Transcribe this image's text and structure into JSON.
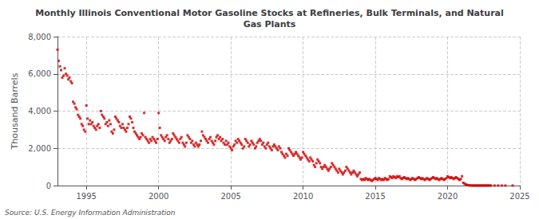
{
  "chart_data": {
    "type": "scatter",
    "title": "Monthly Illinois Conventional Motor Gasoline Stocks at Refineries, Bulk Terminals, and Natural\nGas Plants",
    "ylabel": "Thousand Barrels",
    "annotations": [
      "Source: U.S. Energy Information Administration"
    ],
    "color": "#cc0000",
    "marker": "square",
    "grid": true,
    "xlim": [
      1993.0,
      2025
    ],
    "xticks": [
      1995,
      2000,
      2005,
      2010,
      2015,
      2020,
      2025
    ],
    "ylim": [
      0,
      8000
    ],
    "yticks": [
      0,
      {
        "value": 2000,
        "label": "2,000"
      },
      {
        "value": 4000,
        "label": "4,000"
      },
      {
        "value": 6000,
        "label": "6,000"
      },
      {
        "value": 8000,
        "label": "8,000"
      }
    ],
    "x": [
      1993.0,
      1993.08,
      1993.17,
      1993.25,
      1993.33,
      1993.42,
      1993.5,
      1993.58,
      1993.67,
      1993.75,
      1993.83,
      1993.92,
      1994.0,
      1994.08,
      1994.17,
      1994.25,
      1994.33,
      1994.42,
      1994.5,
      1994.58,
      1994.67,
      1994.75,
      1994.83,
      1994.92,
      1995.0,
      1995.08,
      1995.17,
      1995.25,
      1995.33,
      1995.42,
      1995.5,
      1995.58,
      1995.67,
      1995.75,
      1995.83,
      1995.92,
      1996.0,
      1996.08,
      1996.17,
      1996.25,
      1996.33,
      1996.42,
      1996.5,
      1996.58,
      1996.67,
      1996.75,
      1996.83,
      1996.92,
      1997.0,
      1997.08,
      1997.17,
      1997.25,
      1997.33,
      1997.42,
      1997.5,
      1997.58,
      1997.67,
      1997.75,
      1997.83,
      1997.92,
      1998.0,
      1998.08,
      1998.17,
      1998.25,
      1998.33,
      1998.42,
      1998.5,
      1998.58,
      1998.67,
      1998.75,
      1998.83,
      1998.92,
      1999.0,
      1999.08,
      1999.17,
      1999.25,
      1999.33,
      1999.42,
      1999.5,
      1999.58,
      1999.67,
      1999.75,
      1999.83,
      1999.92,
      2000.0,
      2000.08,
      2000.17,
      2000.25,
      2000.33,
      2000.42,
      2000.5,
      2000.58,
      2000.67,
      2000.75,
      2000.83,
      2000.92,
      2001.0,
      2001.08,
      2001.17,
      2001.25,
      2001.33,
      2001.42,
      2001.5,
      2001.58,
      2001.67,
      2001.75,
      2001.83,
      2001.92,
      2002.0,
      2002.08,
      2002.17,
      2002.25,
      2002.33,
      2002.42,
      2002.5,
      2002.58,
      2002.67,
      2002.75,
      2002.83,
      2002.92,
      2003.0,
      2003.08,
      2003.17,
      2003.25,
      2003.33,
      2003.42,
      2003.5,
      2003.58,
      2003.67,
      2003.75,
      2003.83,
      2003.92,
      2004.0,
      2004.08,
      2004.17,
      2004.25,
      2004.33,
      2004.42,
      2004.5,
      2004.58,
      2004.67,
      2004.75,
      2004.83,
      2004.92,
      2005.0,
      2005.08,
      2005.17,
      2005.25,
      2005.33,
      2005.42,
      2005.5,
      2005.58,
      2005.67,
      2005.75,
      2005.83,
      2005.92,
      2006.0,
      2006.08,
      2006.17,
      2006.25,
      2006.33,
      2006.42,
      2006.5,
      2006.58,
      2006.67,
      2006.75,
      2006.83,
      2006.92,
      2007.0,
      2007.08,
      2007.17,
      2007.25,
      2007.33,
      2007.42,
      2007.5,
      2007.58,
      2007.67,
      2007.75,
      2007.83,
      2007.92,
      2008.0,
      2008.08,
      2008.17,
      2008.25,
      2008.33,
      2008.42,
      2008.5,
      2008.58,
      2008.67,
      2008.75,
      2008.83,
      2008.92,
      2009.0,
      2009.08,
      2009.17,
      2009.25,
      2009.33,
      2009.42,
      2009.5,
      2009.58,
      2009.67,
      2009.75,
      2009.83,
      2009.92,
      2010.0,
      2010.08,
      2010.17,
      2010.25,
      2010.33,
      2010.42,
      2010.5,
      2010.58,
      2010.67,
      2010.75,
      2010.83,
      2010.92,
      2011.0,
      2011.08,
      2011.17,
      2011.25,
      2011.33,
      2011.42,
      2011.5,
      2011.58,
      2011.67,
      2011.75,
      2011.83,
      2011.92,
      2012.0,
      2012.08,
      2012.17,
      2012.25,
      2012.33,
      2012.42,
      2012.5,
      2012.58,
      2012.67,
      2012.75,
      2012.83,
      2012.92,
      2013.0,
      2013.08,
      2013.17,
      2013.25,
      2013.33,
      2013.42,
      2013.5,
      2013.58,
      2013.67,
      2013.75,
      2013.83,
      2013.92,
      2014.0,
      2014.08,
      2014.17,
      2014.25,
      2014.33,
      2014.42,
      2014.5,
      2014.58,
      2014.67,
      2014.75,
      2014.83,
      2014.92,
      2015.0,
      2015.08,
      2015.17,
      2015.25,
      2015.33,
      2015.42,
      2015.5,
      2015.58,
      2015.67,
      2015.75,
      2015.83,
      2015.92,
      2016.0,
      2016.08,
      2016.17,
      2016.25,
      2016.33,
      2016.42,
      2016.5,
      2016.58,
      2016.67,
      2016.75,
      2016.83,
      2016.92,
      2017.0,
      2017.08,
      2017.17,
      2017.25,
      2017.33,
      2017.42,
      2017.5,
      2017.58,
      2017.67,
      2017.75,
      2017.83,
      2017.92,
      2018.0,
      2018.08,
      2018.17,
      2018.25,
      2018.33,
      2018.42,
      2018.5,
      2018.58,
      2018.67,
      2018.75,
      2018.83,
      2018.92,
      2019.0,
      2019.08,
      2019.17,
      2019.25,
      2019.33,
      2019.42,
      2019.5,
      2019.58,
      2019.67,
      2019.75,
      2019.83,
      2019.92,
      2020.0,
      2020.08,
      2020.17,
      2020.25,
      2020.33,
      2020.42,
      2020.5,
      2020.58,
      2020.67,
      2020.75,
      2020.83,
      2020.92,
      2021.0,
      2021.08,
      2021.17,
      2021.25,
      2021.33,
      2021.42,
      2021.5,
      2021.58,
      2021.67,
      2021.75,
      2021.83,
      2021.92,
      2022.0,
      2022.08,
      2022.17,
      2022.25,
      2022.33,
      2022.42,
      2022.5,
      2022.58,
      2022.67,
      2022.75,
      2022.83,
      2022.92,
      2023.0,
      2023.25,
      2023.5,
      2023.75,
      2024.0,
      2024.5
    ],
    "values": [
      7300,
      6700,
      6400,
      6200,
      5800,
      5900,
      6300,
      6000,
      5900,
      5700,
      5800,
      5600,
      5500,
      4500,
      4400,
      4200,
      4100,
      3800,
      3700,
      3600,
      3300,
      3200,
      3000,
      2900,
      4300,
      3600,
      3300,
      3500,
      3300,
      3400,
      3200,
      3100,
      3000,
      3200,
      3300,
      3100,
      4000,
      3800,
      3700,
      3600,
      3300,
      3400,
      3200,
      3500,
      3300,
      2900,
      2800,
      3000,
      3700,
      3600,
      3500,
      3400,
      3200,
      3100,
      3300,
      3100,
      3000,
      2900,
      3100,
      3300,
      3700,
      3600,
      3400,
      3100,
      2900,
      2800,
      2700,
      2600,
      2500,
      2600,
      2800,
      2700,
      3900,
      2600,
      2500,
      2400,
      2300,
      2500,
      2400,
      2600,
      2500,
      2400,
      2300,
      2500,
      3900,
      3100,
      2700,
      2600,
      2500,
      2400,
      2600,
      2700,
      2500,
      2300,
      2400,
      2500,
      2800,
      2700,
      2600,
      2500,
      2400,
      2300,
      2500,
      2600,
      2300,
      2200,
      2100,
      2300,
      2700,
      2600,
      2500,
      2300,
      2400,
      2200,
      2100,
      2300,
      2200,
      2100,
      2200,
      2400,
      2900,
      2700,
      2600,
      2500,
      2400,
      2300,
      2500,
      2600,
      2400,
      2300,
      2200,
      2400,
      2600,
      2700,
      2500,
      2600,
      2400,
      2500,
      2300,
      2200,
      2400,
      2200,
      2300,
      2100,
      2000,
      1900,
      2100,
      2200,
      2400,
      2300,
      2500,
      2400,
      2300,
      2200,
      2000,
      2100,
      2500,
      2400,
      2300,
      2100,
      2200,
      2400,
      2300,
      2200,
      2000,
      2100,
      2300,
      2400,
      2500,
      2400,
      2200,
      2300,
      2100,
      2000,
      2200,
      2300,
      2100,
      2000,
      1900,
      2100,
      2200,
      2100,
      2000,
      1900,
      2100,
      2000,
      1800,
      1700,
      1600,
      1500,
      1700,
      1600,
      2000,
      1900,
      1800,
      1700,
      1600,
      1700,
      1800,
      1700,
      1600,
      1500,
      1400,
      1500,
      1800,
      1700,
      1600,
      1500,
      1400,
      1300,
      1500,
      1400,
      1300,
      1100,
      1000,
      1200,
      1400,
      1300,
      1200,
      1000,
      900,
      1000,
      1100,
      1000,
      900,
      800,
      900,
      1000,
      1200,
      1100,
      1000,
      900,
      800,
      700,
      900,
      800,
      700,
      600,
      700,
      800,
      1000,
      900,
      800,
      700,
      600,
      700,
      800,
      700,
      600,
      500,
      600,
      700,
      350,
      300,
      350,
      300,
      400,
      350,
      300,
      350,
      300,
      250,
      300,
      350,
      400,
      350,
      300,
      400,
      350,
      300,
      350,
      300,
      400,
      350,
      300,
      350,
      500,
      450,
      400,
      500,
      450,
      400,
      500,
      450,
      500,
      400,
      350,
      400,
      450,
      400,
      350,
      400,
      350,
      300,
      350,
      400,
      350,
      300,
      350,
      400,
      450,
      400,
      350,
      400,
      350,
      300,
      350,
      400,
      350,
      300,
      350,
      400,
      450,
      400,
      350,
      400,
      350,
      300,
      350,
      400,
      350,
      300,
      350,
      400,
      500,
      450,
      400,
      450,
      400,
      350,
      400,
      450,
      400,
      350,
      300,
      350,
      500,
      150,
      100,
      60,
      40,
      20,
      10,
      5,
      3,
      2,
      2,
      2,
      2,
      2,
      2,
      2,
      2,
      2,
      2,
      2,
      2,
      2,
      2,
      2,
      2,
      2,
      2,
      2,
      2,
      2
    ]
  }
}
